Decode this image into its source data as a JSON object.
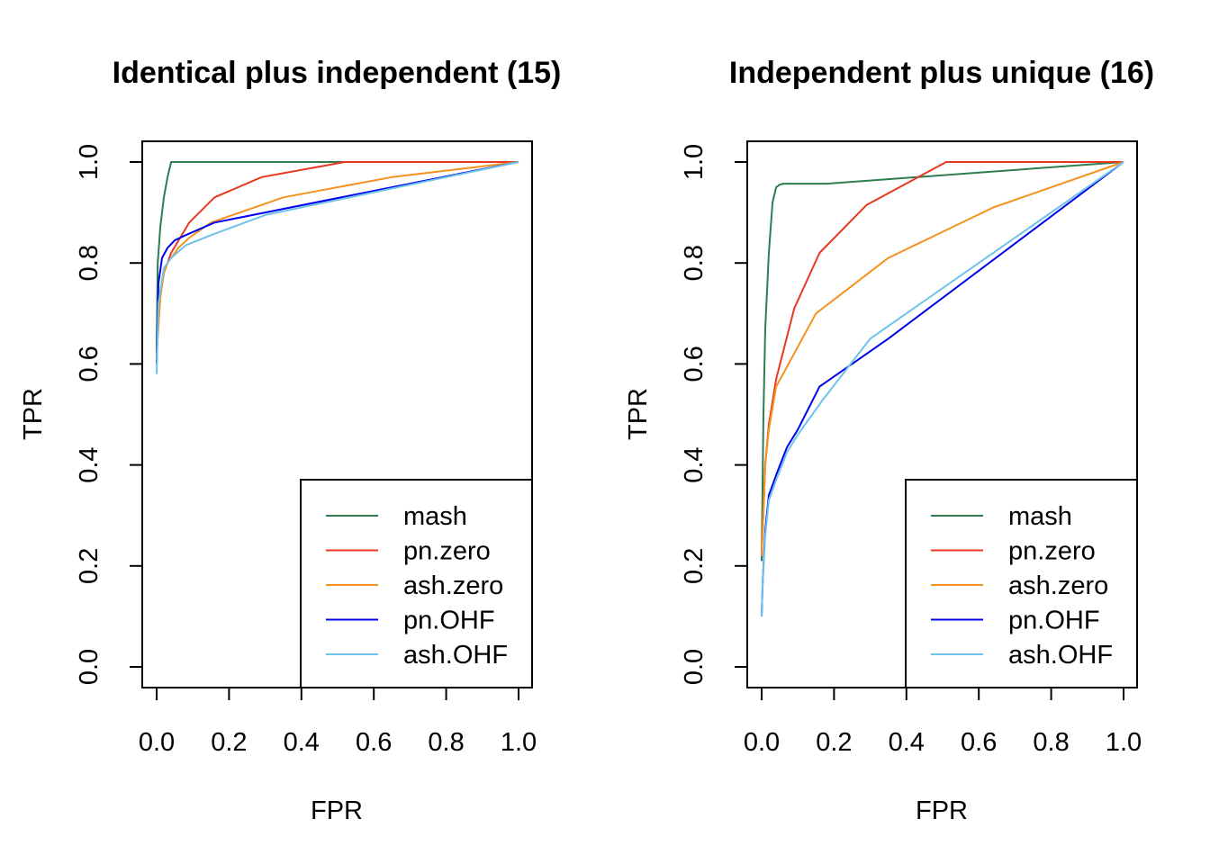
{
  "chart_data": [
    {
      "type": "line",
      "title": "Identical plus independent (15)",
      "xlabel": "FPR",
      "ylabel": "TPR",
      "xlim": [
        0,
        1
      ],
      "ylim": [
        0,
        1
      ],
      "xticks": [
        "0.0",
        "0.2",
        "0.4",
        "0.6",
        "0.8",
        "1.0"
      ],
      "yticks": [
        "0.0",
        "0.2",
        "0.4",
        "0.6",
        "0.8",
        "1.0"
      ],
      "legend_position": "bottom-right",
      "series": [
        {
          "name": "mash",
          "color": "#2e7d4f",
          "x": [
            0,
            0.003,
            0.01,
            0.02,
            0.03,
            0.04,
            1.0
          ],
          "y": [
            0.63,
            0.8,
            0.87,
            0.93,
            0.97,
            1.0,
            1.0
          ]
        },
        {
          "name": "pn.zero",
          "color": "#e8381f",
          "x": [
            0,
            0.01,
            0.02,
            0.04,
            0.09,
            0.16,
            0.29,
            0.52,
            1.0
          ],
          "y": [
            0.62,
            0.74,
            0.78,
            0.82,
            0.88,
            0.93,
            0.97,
            1.0,
            1.0
          ]
        },
        {
          "name": "ash.zero",
          "color": "#f5921e",
          "x": [
            0,
            0.01,
            0.02,
            0.03,
            0.06,
            0.09,
            0.15,
            0.35,
            0.65,
            1.0
          ],
          "y": [
            0.62,
            0.73,
            0.78,
            0.8,
            0.83,
            0.85,
            0.88,
            0.93,
            0.97,
            1.0
          ]
        },
        {
          "name": "pn.OHF",
          "color": "#0000f0",
          "x": [
            0,
            0.005,
            0.015,
            0.03,
            0.05,
            0.08,
            0.16,
            0.3,
            1.0
          ],
          "y": [
            0.6,
            0.76,
            0.81,
            0.83,
            0.845,
            0.855,
            0.88,
            0.9,
            1.0
          ]
        },
        {
          "name": "ash.OHF",
          "color": "#6ec3ea",
          "x": [
            0,
            0.005,
            0.02,
            0.04,
            0.08,
            0.15,
            0.3,
            1.0
          ],
          "y": [
            0.58,
            0.72,
            0.79,
            0.81,
            0.835,
            0.855,
            0.895,
            1.0
          ]
        }
      ]
    },
    {
      "type": "line",
      "title": "Independent plus unique (16)",
      "xlabel": "FPR",
      "ylabel": "TPR",
      "xlim": [
        0,
        1
      ],
      "ylim": [
        0,
        1
      ],
      "xticks": [
        "0.0",
        "0.2",
        "0.4",
        "0.6",
        "0.8",
        "1.0"
      ],
      "yticks": [
        "0.0",
        "0.2",
        "0.4",
        "0.6",
        "0.8",
        "1.0"
      ],
      "legend_position": "bottom-right",
      "series": [
        {
          "name": "mash",
          "color": "#2e7d4f",
          "x": [
            0,
            0.005,
            0.01,
            0.02,
            0.03,
            0.04,
            0.05,
            0.06,
            0.18,
            1.0
          ],
          "y": [
            0.21,
            0.5,
            0.67,
            0.82,
            0.92,
            0.95,
            0.955,
            0.957,
            0.957,
            1.0
          ]
        },
        {
          "name": "pn.zero",
          "color": "#e8381f",
          "x": [
            0,
            0.01,
            0.02,
            0.04,
            0.09,
            0.16,
            0.29,
            0.51,
            1.0
          ],
          "y": [
            0.22,
            0.4,
            0.48,
            0.57,
            0.71,
            0.82,
            0.915,
            1.0,
            1.0
          ]
        },
        {
          "name": "ash.zero",
          "color": "#f5921e",
          "x": [
            0,
            0.01,
            0.02,
            0.04,
            0.15,
            0.35,
            0.64,
            1.0
          ],
          "y": [
            0.22,
            0.4,
            0.47,
            0.555,
            0.7,
            0.81,
            0.91,
            1.0
          ]
        },
        {
          "name": "pn.OHF",
          "color": "#0000f0",
          "x": [
            0,
            0.003,
            0.01,
            0.02,
            0.04,
            0.07,
            0.1,
            0.16,
            0.35,
            1.0
          ],
          "y": [
            0.1,
            0.17,
            0.27,
            0.34,
            0.38,
            0.435,
            0.47,
            0.555,
            0.65,
            1.0
          ]
        },
        {
          "name": "ash.OHF",
          "color": "#6ec3ea",
          "x": [
            0,
            0.003,
            0.01,
            0.02,
            0.04,
            0.07,
            0.1,
            0.17,
            0.3,
            1.0
          ],
          "y": [
            0.1,
            0.17,
            0.26,
            0.33,
            0.37,
            0.425,
            0.46,
            0.53,
            0.65,
            1.0
          ]
        }
      ]
    }
  ]
}
